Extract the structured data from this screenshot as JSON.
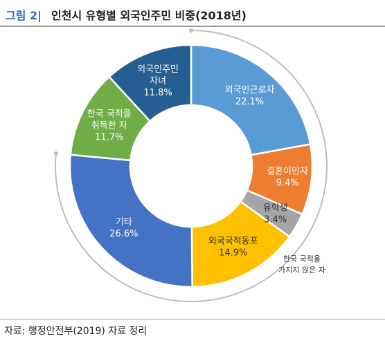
{
  "figure": {
    "number": "그림 2|",
    "title": "인천시 유형별 외국인주민 비중(2018년)",
    "source": "자료: 행정안전부(2019) 자료 정리"
  },
  "chart_data": {
    "type": "donut",
    "title": "인천시 유형별 외국인주민 비중(2018년)",
    "unit": "%",
    "slices": [
      {
        "label": "외국인근로자",
        "value": 22.1,
        "color": "#5b9bd5",
        "value_text": "22.1%"
      },
      {
        "label": "결혼이민자",
        "value": 9.4,
        "color": "#ed7d31",
        "value_text": "9.4%"
      },
      {
        "label": "유학생",
        "value": 3.4,
        "color": "#a5a5a5",
        "value_text": "3.4%"
      },
      {
        "label": "외국국적동포",
        "value": 14.9,
        "color": "#ffc000",
        "value_text": "14.9%"
      },
      {
        "label": "기타",
        "value": 26.6,
        "color": "#4472c4",
        "value_text": "26.6%"
      },
      {
        "label": "한국 국적을 취득한 자",
        "value": 11.7,
        "color": "#70ad47",
        "value_text": "11.7%"
      },
      {
        "label": "외국인주민 자녀",
        "value": 11.8,
        "color": "#255e91",
        "value_text": "11.8%"
      }
    ],
    "group_annotation": "한국 국적을 가지지 않은 자"
  }
}
